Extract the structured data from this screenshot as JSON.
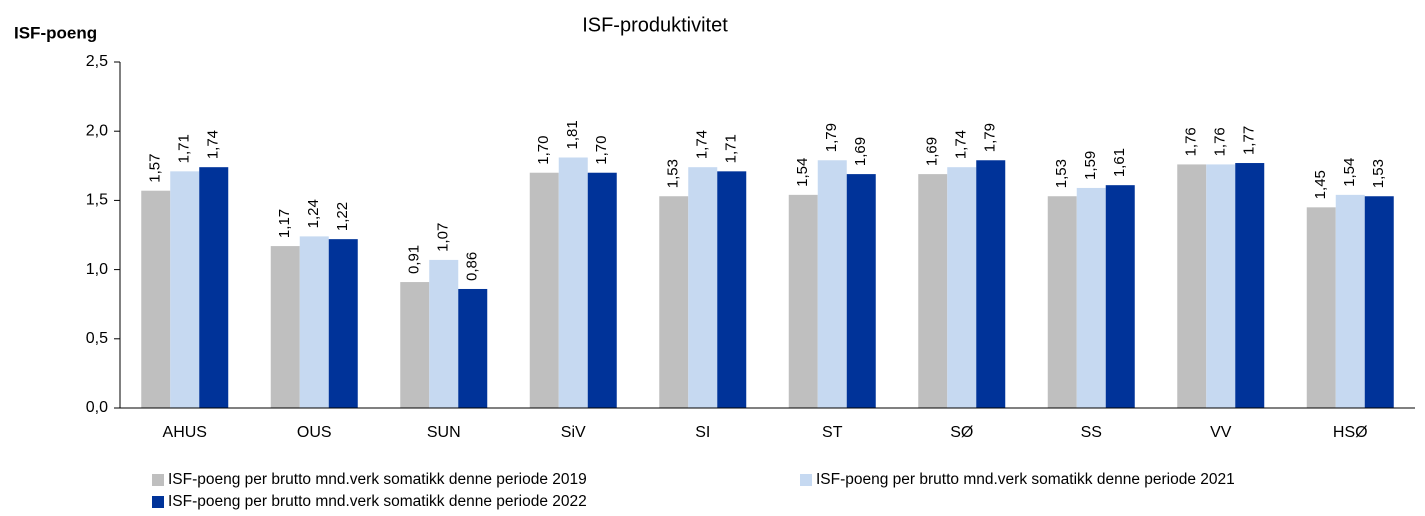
{
  "chart_data": {
    "type": "bar",
    "title": "ISF-produktivitet",
    "y_label": "ISF-poeng",
    "categories": [
      "AHUS",
      "OUS",
      "SUN",
      "SiV",
      "SI",
      "ST",
      "SØ",
      "SS",
      "VV",
      "HSØ"
    ],
    "series": [
      {
        "name": "ISF-poeng per brutto mnd.verk somatikk denne periode 2019",
        "color": "#bfbfbf",
        "values": [
          1.57,
          1.17,
          0.91,
          1.7,
          1.53,
          1.54,
          1.69,
          1.53,
          1.76,
          1.45
        ],
        "value_labels": [
          "1,57",
          "1,17",
          "0,91",
          "1,70",
          "1,53",
          "1,54",
          "1,69",
          "1,53",
          "1,76",
          "1,45"
        ]
      },
      {
        "name": "ISF-poeng per brutto mnd.verk somatikk denne periode 2021",
        "color": "#c6d9f1",
        "values": [
          1.71,
          1.24,
          1.07,
          1.81,
          1.74,
          1.79,
          1.74,
          1.59,
          1.76,
          1.54
        ],
        "value_labels": [
          "1,71",
          "1,24",
          "1,07",
          "1,81",
          "1,74",
          "1,79",
          "1,74",
          "1,59",
          "1,76",
          "1,54"
        ]
      },
      {
        "name": "ISF-poeng per brutto mnd.verk somatikk denne periode 2022",
        "color": "#003399",
        "values": [
          1.74,
          1.22,
          0.86,
          1.7,
          1.71,
          1.69,
          1.79,
          1.61,
          1.77,
          1.53
        ],
        "value_labels": [
          "1,74",
          "1,22",
          "0,86",
          "1,70",
          "1,71",
          "1,69",
          "1,79",
          "1,61",
          "1,77",
          "1,53"
        ]
      }
    ],
    "ylim": [
      0,
      2.5
    ],
    "yticks": [
      {
        "value": 0,
        "label": "0,0"
      },
      {
        "value": 0.5,
        "label": "0,5"
      },
      {
        "value": 1,
        "label": "1,0"
      },
      {
        "value": 1.5,
        "label": "1,5"
      },
      {
        "value": 2,
        "label": "2,0"
      },
      {
        "value": 2.5,
        "label": "2,5"
      }
    ],
    "grid": false
  }
}
